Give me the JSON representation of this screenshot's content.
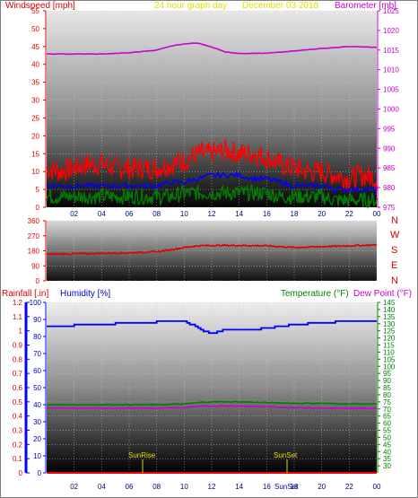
{
  "header": {
    "left_title": "Windspeed [mph]",
    "center_title": "24 hour graph day",
    "date_title": "December 03 2018",
    "right_title": "Barometer [mb]"
  },
  "middle": {
    "direction_labels": [
      "N",
      "W",
      "S",
      "E",
      "N"
    ]
  },
  "bottom_header": {
    "rain_title": "Rainfall [.in]",
    "humidity_title": "Humidity [%]",
    "temp_title": "Temperature (°F)",
    "dew_title": "Dew Point (°F)"
  },
  "annotations": {
    "sunrise": "SunRise",
    "sunset": "SunSet",
    "sunset_axis": "SunSet"
  },
  "colors": {
    "wind": "#ff0000",
    "wind_avg": "#0000ff",
    "wind_green": "#008000",
    "barometer": "#cc00cc",
    "direction": "#dd0000",
    "humidity": "#0000ff",
    "temperature": "#008000",
    "dewpoint": "#cc00cc",
    "rain": "#ff0000",
    "date": "#e0e000"
  },
  "chart_data": [
    {
      "type": "line",
      "title": "24 hour graph day",
      "x_ticks": [
        "02",
        "04",
        "06",
        "08",
        "10",
        "12",
        "14",
        "16",
        "18",
        "20",
        "22",
        "00"
      ],
      "left_axis": {
        "label": "Windspeed [mph]",
        "range": [
          0,
          55
        ],
        "ticks": [
          0,
          5,
          10,
          15,
          20,
          25,
          30,
          35,
          40,
          45,
          50,
          55
        ]
      },
      "right_axis": {
        "label": "Barometer [mb]",
        "range": [
          975,
          1025
        ],
        "ticks": [
          975,
          980,
          985,
          990,
          995,
          1000,
          1005,
          1010,
          1015,
          1020,
          1025
        ]
      },
      "series": [
        {
          "name": "Windspeed",
          "axis": "left",
          "x": [
            0,
            1,
            2,
            3,
            4,
            5,
            6,
            7,
            8,
            9,
            10,
            11,
            12,
            13,
            14,
            15,
            16,
            17,
            18,
            19,
            20,
            21,
            22,
            23,
            24
          ],
          "values": [
            11,
            10,
            11,
            12,
            12,
            11,
            11,
            11,
            11,
            12,
            13,
            15,
            15,
            16,
            15,
            15,
            14,
            12,
            11,
            10,
            10,
            9,
            8,
            9,
            8
          ]
        },
        {
          "name": "Wind average",
          "axis": "left",
          "x": [
            0,
            1,
            2,
            3,
            4,
            5,
            6,
            7,
            8,
            9,
            10,
            11,
            12,
            13,
            14,
            15,
            16,
            17,
            18,
            19,
            20,
            21,
            22,
            23,
            24
          ],
          "values": [
            6,
            6,
            6,
            6,
            6,
            6,
            6,
            6,
            6,
            7,
            7,
            8,
            9,
            9,
            9,
            8,
            8,
            7,
            6,
            6,
            6,
            5,
            5,
            5,
            5
          ]
        },
        {
          "name": "Gust low",
          "axis": "left",
          "x": [
            0,
            1,
            2,
            3,
            4,
            5,
            6,
            7,
            8,
            9,
            10,
            11,
            12,
            13,
            14,
            15,
            16,
            17,
            18,
            19,
            20,
            21,
            22,
            23,
            24
          ],
          "values": [
            3,
            3,
            3,
            3,
            3,
            3,
            3,
            3,
            3,
            3,
            4,
            4,
            4,
            4,
            4,
            4,
            4,
            3,
            3,
            3,
            3,
            2,
            2,
            2,
            2
          ]
        },
        {
          "name": "Barometer",
          "axis": "right",
          "x": [
            0,
            2,
            4,
            6,
            8,
            9,
            10,
            11,
            12,
            13,
            14,
            16,
            18,
            20,
            22,
            24
          ],
          "values": [
            1014,
            1014,
            1014,
            1014.3,
            1015,
            1016,
            1016.6,
            1016.8,
            1015.8,
            1014.5,
            1014.1,
            1014.2,
            1014.8,
            1015.4,
            1015.9,
            1015.7
          ]
        }
      ]
    },
    {
      "type": "line",
      "title": "Wind direction",
      "x_ticks": [
        "02",
        "04",
        "06",
        "08",
        "10",
        "12",
        "14",
        "16",
        "18",
        "20",
        "22",
        "00"
      ],
      "left_axis": {
        "range": [
          0,
          360
        ],
        "ticks": [
          0,
          90,
          180,
          270,
          360
        ]
      },
      "series": [
        {
          "name": "Direction",
          "x": [
            0,
            2,
            4,
            6,
            8,
            9,
            10,
            11,
            12,
            14,
            16,
            18,
            20,
            22,
            24
          ],
          "values": [
            160,
            162,
            165,
            168,
            175,
            185,
            200,
            210,
            212,
            212,
            210,
            200,
            205,
            210,
            215
          ]
        }
      ]
    },
    {
      "type": "line",
      "x_ticks": [
        "02",
        "04",
        "06",
        "08",
        "10",
        "12",
        "14",
        "16",
        "18",
        "20",
        "22",
        "00"
      ],
      "rain_axis": {
        "label": "Rainfall [.in]",
        "range": [
          0,
          1.2
        ],
        "ticks": [
          0,
          0.1,
          0.2,
          0.3,
          0.4,
          0.5,
          0.6,
          0.7,
          0.8,
          0.9,
          1,
          1.1,
          1.2
        ]
      },
      "humidity_axis": {
        "label": "Humidity [%]",
        "range": [
          0,
          100
        ],
        "ticks": [
          0,
          10,
          20,
          30,
          40,
          50,
          60,
          70,
          80,
          90,
          100
        ]
      },
      "temp_axis": {
        "label": "Temperature (°F)",
        "range": [
          25,
          145
        ],
        "ticks": [
          30,
          35,
          40,
          45,
          50,
          55,
          60,
          65,
          70,
          75,
          80,
          85,
          90,
          95,
          100,
          105,
          110,
          115,
          120,
          125,
          130,
          135,
          140,
          145
        ]
      },
      "series": [
        {
          "name": "Humidity",
          "axis": "humidity",
          "x": [
            0,
            2,
            4,
            6,
            8,
            10,
            10.5,
            11.5,
            12,
            13,
            14,
            15,
            16,
            18,
            20,
            22,
            24
          ],
          "values": [
            86,
            86.5,
            87,
            88,
            88.5,
            89,
            87,
            83,
            82,
            84,
            83.5,
            84,
            85,
            87,
            88,
            89,
            89
          ]
        },
        {
          "name": "Temperature",
          "axis": "temp",
          "x": [
            0,
            2,
            4,
            6,
            8,
            10,
            11,
            12,
            14,
            16,
            18,
            20,
            22,
            24
          ],
          "values": [
            73,
            73,
            73,
            73,
            73,
            73.5,
            74.5,
            75,
            75,
            74.5,
            74,
            74,
            73.5,
            73.5
          ]
        },
        {
          "name": "Dew Point",
          "axis": "temp",
          "x": [
            0,
            2,
            4,
            6,
            8,
            10,
            11,
            12,
            14,
            16,
            18,
            20,
            22,
            24
          ],
          "values": [
            70.5,
            70.5,
            70.5,
            70.5,
            70.5,
            71,
            72,
            72,
            72,
            71.5,
            71,
            70.5,
            70.5,
            70.5
          ]
        },
        {
          "name": "Rainfall",
          "axis": "rain",
          "x": [
            0,
            24
          ],
          "values": [
            0,
            0
          ]
        }
      ],
      "markers": [
        {
          "label": "SunRise",
          "x": 7.3
        },
        {
          "label": "SunSet",
          "x": 16.4
        }
      ]
    }
  ]
}
